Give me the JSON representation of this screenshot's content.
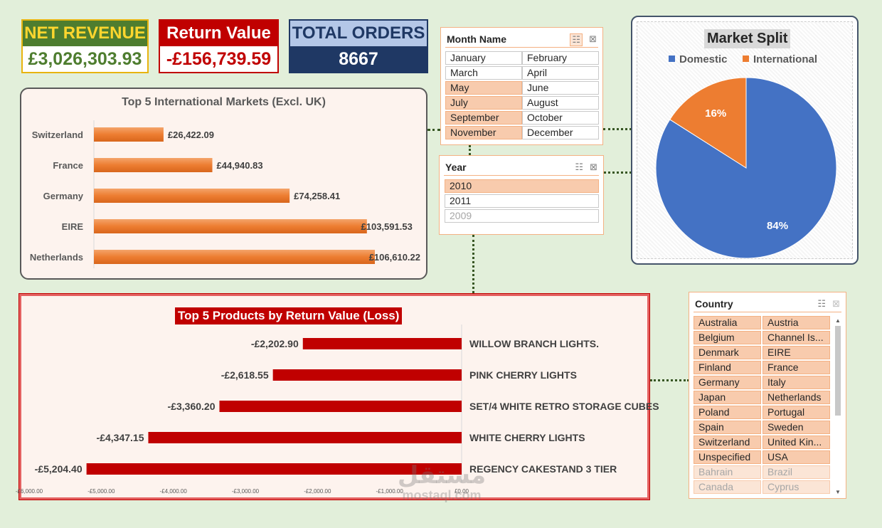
{
  "kpis": {
    "net_revenue": {
      "label": "NET REVENUE",
      "value": "£3,026,303.93"
    },
    "return_value": {
      "label": "Return Value",
      "value": "-£156,739.59"
    },
    "total_orders": {
      "label": "TOTAL ORDERS",
      "value": "8667"
    }
  },
  "colors": {
    "orange": "#ed7d31",
    "red": "#c00000",
    "blue": "#4472c4",
    "green": "#4e7d2f",
    "navy": "#1f3864"
  },
  "chart_data": [
    {
      "type": "bar",
      "orientation": "horizontal",
      "title": "Top 5 International Markets (Excl. UK)",
      "categories": [
        "Switzerland",
        "France",
        "Germany",
        "EIRE",
        "Netherlands"
      ],
      "values": [
        26422.09,
        44940.83,
        74258.41,
        103591.53,
        106610.22
      ],
      "labels": [
        "£26,422.09",
        "£44,940.83",
        "£74,258.41",
        "£103,591.53",
        "£106,610.22"
      ],
      "xlim": [
        0,
        110000
      ]
    },
    {
      "type": "bar",
      "orientation": "horizontal",
      "title": "Top 5 Products by Return Value (Loss)",
      "categories": [
        "WILLOW BRANCH LIGHTS.",
        "PINK CHERRY LIGHTS",
        "SET/4 WHITE RETRO STORAGE CUBES",
        "WHITE CHERRY LIGHTS",
        "REGENCY CAKESTAND 3 TIER"
      ],
      "values": [
        -2202.9,
        -2618.55,
        -3360.2,
        -4347.15,
        -5204.4
      ],
      "labels": [
        "-£2,202.90",
        "-£2,618.55",
        "-£3,360.20",
        "-£4,347.15",
        "-£5,204.40"
      ],
      "xlim": [
        -6000,
        0
      ],
      "ticks": [
        "-£6,000.00",
        "-£5,000.00",
        "-£4,000.00",
        "-£3,000.00",
        "-£2,000.00",
        "-£1,000.00",
        "£0.00"
      ]
    },
    {
      "type": "pie",
      "title": "Market Split",
      "categories": [
        "Domestic",
        "International"
      ],
      "values": [
        84,
        16
      ],
      "labels": [
        "84%",
        "16%"
      ],
      "colors": [
        "#4472c4",
        "#ed7d31"
      ],
      "legend": "top"
    }
  ],
  "slicers": {
    "month": {
      "title": "Month Name",
      "items": [
        {
          "label": "January",
          "state": "off"
        },
        {
          "label": "February",
          "state": "off"
        },
        {
          "label": "March",
          "state": "off"
        },
        {
          "label": "April",
          "state": "off"
        },
        {
          "label": "May",
          "state": "sel"
        },
        {
          "label": "June",
          "state": "off"
        },
        {
          "label": "July",
          "state": "sel"
        },
        {
          "label": "August",
          "state": "off"
        },
        {
          "label": "September",
          "state": "sel"
        },
        {
          "label": "October",
          "state": "off"
        },
        {
          "label": "November",
          "state": "sel"
        },
        {
          "label": "December",
          "state": "off"
        }
      ]
    },
    "year": {
      "title": "Year",
      "items": [
        {
          "label": "2010",
          "state": "sel"
        },
        {
          "label": "2011",
          "state": "off"
        },
        {
          "label": "2009",
          "state": "nodata"
        }
      ]
    },
    "country": {
      "title": "Country",
      "items": [
        {
          "label": "Australia",
          "state": "sel"
        },
        {
          "label": "Austria",
          "state": "sel"
        },
        {
          "label": "Belgium",
          "state": "sel"
        },
        {
          "label": "Channel Is...",
          "state": "sel"
        },
        {
          "label": "Denmark",
          "state": "sel"
        },
        {
          "label": "EIRE",
          "state": "sel"
        },
        {
          "label": "Finland",
          "state": "sel"
        },
        {
          "label": "France",
          "state": "sel"
        },
        {
          "label": "Germany",
          "state": "sel"
        },
        {
          "label": "Italy",
          "state": "sel"
        },
        {
          "label": "Japan",
          "state": "sel"
        },
        {
          "label": "Netherlands",
          "state": "sel"
        },
        {
          "label": "Poland",
          "state": "sel"
        },
        {
          "label": "Portugal",
          "state": "sel"
        },
        {
          "label": "Spain",
          "state": "sel"
        },
        {
          "label": "Sweden",
          "state": "sel"
        },
        {
          "label": "Switzerland",
          "state": "sel"
        },
        {
          "label": "United Kin...",
          "state": "sel"
        },
        {
          "label": "Unspecified",
          "state": "sel"
        },
        {
          "label": "USA",
          "state": "sel"
        },
        {
          "label": "Bahrain",
          "state": "dim"
        },
        {
          "label": "Brazil",
          "state": "dim"
        },
        {
          "label": "Canada",
          "state": "dim"
        },
        {
          "label": "Cyprus",
          "state": "dim"
        }
      ]
    }
  },
  "icons": {
    "multi_select": "multi-select-icon",
    "clear_filter": "clear-filter-icon",
    "scroll_up": "▲",
    "scroll_down": "▼"
  },
  "watermark": {
    "arabic": "مستقل",
    "latin": "mostaql.com"
  }
}
